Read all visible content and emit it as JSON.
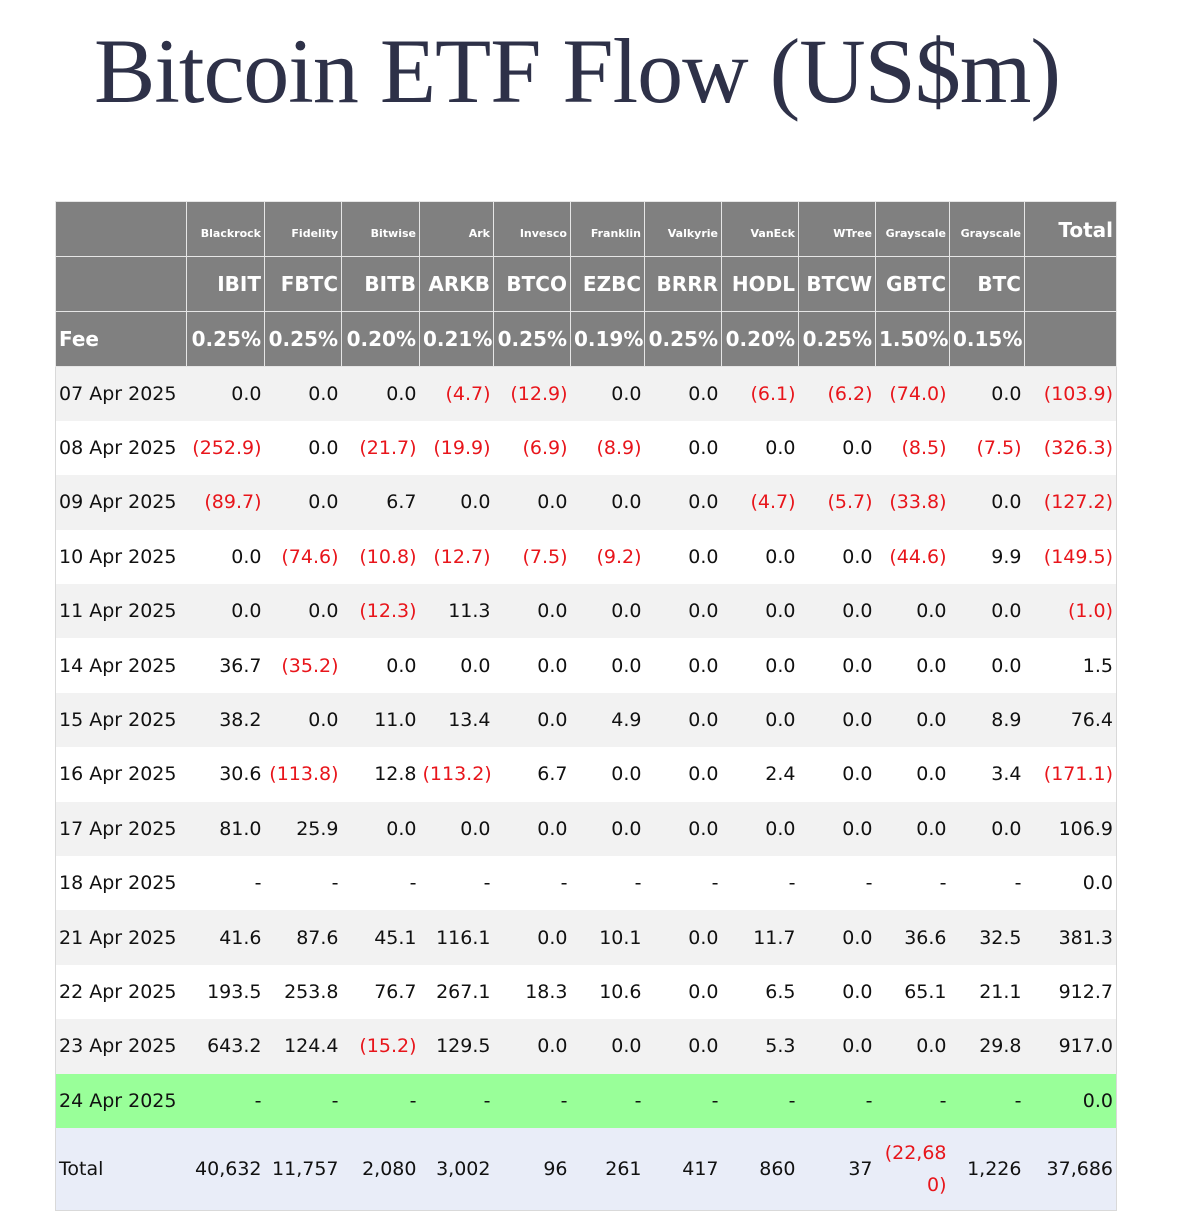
{
  "title": "Bitcoin ETF Flow (US$m)",
  "table": {
    "issuers": [
      "Blackrock",
      "Fidelity",
      "Bitwise",
      "Ark",
      "Invesco",
      "Franklin",
      "Valkyrie",
      "VanEck",
      "WTree",
      "Grayscale",
      "Grayscale"
    ],
    "total_label": "Total",
    "tickers": [
      "IBIT",
      "FBTC",
      "BITB",
      "ARKB",
      "BTCO",
      "EZBC",
      "BRRR",
      "HODL",
      "BTCW",
      "GBTC",
      "BTC"
    ],
    "fee_label": "Fee",
    "fees": [
      "0.25%",
      "0.25%",
      "0.20%",
      "0.21%",
      "0.25%",
      "0.19%",
      "0.25%",
      "0.20%",
      "0.25%",
      "1.50%",
      "0.15%"
    ],
    "rows": [
      [
        "07 Apr 2025",
        "0.0",
        "0.0",
        "0.0",
        "(4.7)",
        "(12.9)",
        "0.0",
        "0.0",
        "(6.1)",
        "(6.2)",
        "(74.0)",
        "0.0",
        "(103.9)"
      ],
      [
        "08 Apr 2025",
        "(252.9)",
        "0.0",
        "(21.7)",
        "(19.9)",
        "(6.9)",
        "(8.9)",
        "0.0",
        "0.0",
        "0.0",
        "(8.5)",
        "(7.5)",
        "(326.3)"
      ],
      [
        "09 Apr 2025",
        "(89.7)",
        "0.0",
        "6.7",
        "0.0",
        "0.0",
        "0.0",
        "0.0",
        "(4.7)",
        "(5.7)",
        "(33.8)",
        "0.0",
        "(127.2)"
      ],
      [
        "10 Apr 2025",
        "0.0",
        "(74.6)",
        "(10.8)",
        "(12.7)",
        "(7.5)",
        "(9.2)",
        "0.0",
        "0.0",
        "0.0",
        "(44.6)",
        "9.9",
        "(149.5)"
      ],
      [
        "11 Apr 2025",
        "0.0",
        "0.0",
        "(12.3)",
        "11.3",
        "0.0",
        "0.0",
        "0.0",
        "0.0",
        "0.0",
        "0.0",
        "0.0",
        "(1.0)"
      ],
      [
        "14 Apr 2025",
        "36.7",
        "(35.2)",
        "0.0",
        "0.0",
        "0.0",
        "0.0",
        "0.0",
        "0.0",
        "0.0",
        "0.0",
        "0.0",
        "1.5"
      ],
      [
        "15 Apr 2025",
        "38.2",
        "0.0",
        "11.0",
        "13.4",
        "0.0",
        "4.9",
        "0.0",
        "0.0",
        "0.0",
        "0.0",
        "8.9",
        "76.4"
      ],
      [
        "16 Apr 2025",
        "30.6",
        "(113.8)",
        "12.8",
        "(113.2)",
        "6.7",
        "0.0",
        "0.0",
        "2.4",
        "0.0",
        "0.0",
        "3.4",
        "(171.1)"
      ],
      [
        "17 Apr 2025",
        "81.0",
        "25.9",
        "0.0",
        "0.0",
        "0.0",
        "0.0",
        "0.0",
        "0.0",
        "0.0",
        "0.0",
        "0.0",
        "106.9"
      ],
      [
        "18 Apr 2025",
        "-",
        "-",
        "-",
        "-",
        "-",
        "-",
        "-",
        "-",
        "-",
        "-",
        "-",
        "0.0"
      ],
      [
        "21 Apr 2025",
        "41.6",
        "87.6",
        "45.1",
        "116.1",
        "0.0",
        "10.1",
        "0.0",
        "11.7",
        "0.0",
        "36.6",
        "32.5",
        "381.3"
      ],
      [
        "22 Apr 2025",
        "193.5",
        "253.8",
        "76.7",
        "267.1",
        "18.3",
        "10.6",
        "0.0",
        "6.5",
        "0.0",
        "65.1",
        "21.1",
        "912.7"
      ],
      [
        "23 Apr 2025",
        "643.2",
        "124.4",
        "(15.2)",
        "129.5",
        "0.0",
        "0.0",
        "0.0",
        "5.3",
        "0.0",
        "0.0",
        "29.8",
        "917.0"
      ],
      [
        "24 Apr 2025",
        "-",
        "-",
        "-",
        "-",
        "-",
        "-",
        "-",
        "-",
        "-",
        "-",
        "-",
        "0.0"
      ]
    ],
    "total_row": [
      "Total",
      "40,632",
      "11,757",
      "2,080",
      "3,002",
      "96",
      "261",
      "417",
      "860",
      "37",
      "(22,680)",
      "1,226",
      "37,686"
    ]
  }
}
